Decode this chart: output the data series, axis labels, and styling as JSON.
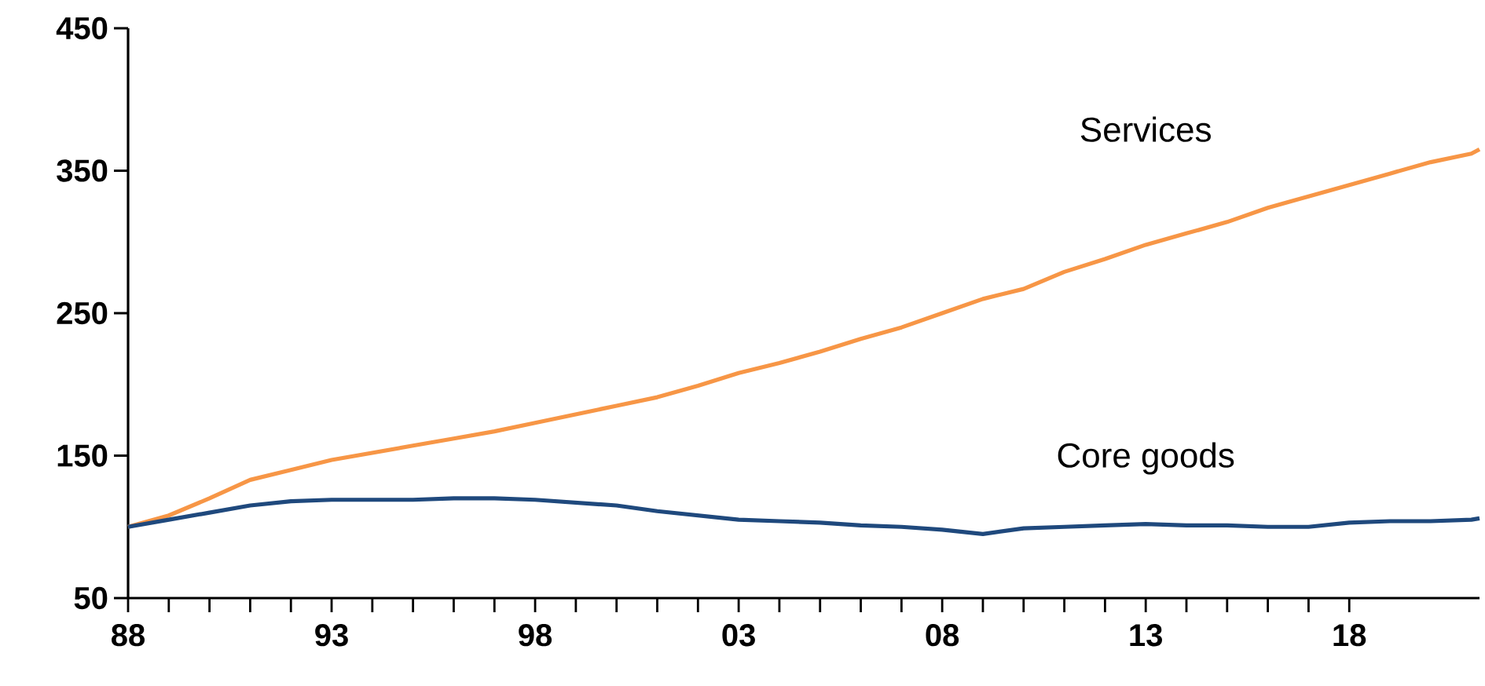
{
  "chart_data": {
    "type": "line",
    "x": [
      1988,
      1989,
      1990,
      1991,
      1992,
      1993,
      1994,
      1995,
      1996,
      1997,
      1998,
      1999,
      2000,
      2001,
      2002,
      2003,
      2004,
      2005,
      2006,
      2007,
      2008,
      2009,
      2010,
      2011,
      2012,
      2013,
      2014,
      2015,
      2016,
      2017,
      2018,
      2019,
      2020,
      2021,
      2021.2
    ],
    "series": [
      {
        "name": "Services",
        "color": "#f79646",
        "values": [
          100,
          108,
          120,
          133,
          140,
          147,
          152,
          157,
          162,
          167,
          173,
          179,
          185,
          191,
          199,
          208,
          215,
          223,
          232,
          240,
          250,
          260,
          267,
          279,
          288,
          298,
          306,
          314,
          324,
          332,
          340,
          348,
          356,
          362,
          365
        ]
      },
      {
        "name": "Core goods",
        "color": "#1f497d",
        "values": [
          100,
          105,
          110,
          115,
          118,
          119,
          119,
          119,
          120,
          120,
          119,
          117,
          115,
          111,
          108,
          105,
          104,
          103,
          101,
          100,
          98,
          95,
          99,
          100,
          101,
          102,
          101,
          101,
          100,
          100,
          103,
          104,
          104,
          105,
          106
        ]
      }
    ],
    "xlim": [
      1988,
      2021.2
    ],
    "xticks": [
      {
        "value": 1988,
        "label": "88"
      },
      {
        "value": 1993,
        "label": "93"
      },
      {
        "value": 1998,
        "label": "98"
      },
      {
        "value": 2003,
        "label": "03"
      },
      {
        "value": 2008,
        "label": "08"
      },
      {
        "value": 2013,
        "label": "13"
      },
      {
        "value": 2018,
        "label": "18"
      }
    ],
    "ylim": [
      50,
      450
    ],
    "yticks": [
      50,
      150,
      250,
      350,
      450
    ],
    "grid": false,
    "legend": false,
    "marker": "none",
    "line_style": "solid"
  }
}
